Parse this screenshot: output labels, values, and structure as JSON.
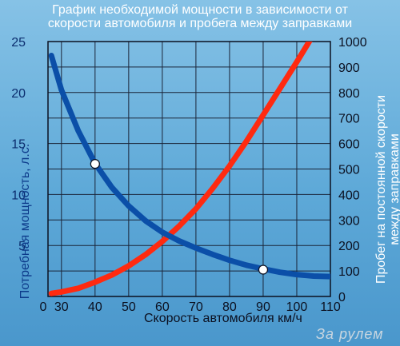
{
  "header": {
    "title_line1": "График необходимой мощности в зависимости от",
    "title_line2": "скорости автомобиля и пробега между заправками"
  },
  "axes": {
    "ylabel": "Потребная мощность, л.с.",
    "y2label_line1": "Пробег на постоянной скорости",
    "y2label_line2": "между заправками",
    "xlabel": "Скорость автомобиля км/ч"
  },
  "watermark": "За рулем",
  "chart_data": {
    "type": "line",
    "xlim": [
      26,
      110
    ],
    "ylim": [
      0,
      25
    ],
    "y2lim": [
      0,
      1000
    ],
    "x_ticks": [
      30,
      40,
      50,
      60,
      70,
      80,
      90,
      100,
      110
    ],
    "x_origin_label": "0",
    "y_ticks": [
      5,
      10,
      15,
      20,
      25
    ],
    "y2_ticks": [
      0,
      100,
      200,
      300,
      400,
      500,
      600,
      700,
      800,
      900,
      1000
    ],
    "grid": true,
    "series": [
      {
        "axis": "y",
        "color": "#ff2a10",
        "points": [
          [
            27,
            0.3
          ],
          [
            30,
            0.45
          ],
          [
            35,
            0.8
          ],
          [
            40,
            1.4
          ],
          [
            45,
            2.1
          ],
          [
            50,
            3.0
          ],
          [
            55,
            4.1
          ],
          [
            60,
            5.4
          ],
          [
            65,
            6.9
          ],
          [
            70,
            8.6
          ],
          [
            75,
            10.6
          ],
          [
            80,
            12.8
          ],
          [
            85,
            15.2
          ],
          [
            90,
            17.8
          ],
          [
            95,
            20.4
          ],
          [
            100,
            23.0
          ],
          [
            105,
            25.7
          ],
          [
            110,
            28.3
          ]
        ]
      },
      {
        "axis": "y2",
        "color": "#0b4fa8",
        "points": [
          [
            27,
            945
          ],
          [
            30,
            810
          ],
          [
            35,
            650
          ],
          [
            40,
            522
          ],
          [
            45,
            428
          ],
          [
            50,
            355
          ],
          [
            55,
            297
          ],
          [
            60,
            252
          ],
          [
            65,
            218
          ],
          [
            70,
            190
          ],
          [
            75,
            165
          ],
          [
            80,
            142
          ],
          [
            85,
            123
          ],
          [
            90,
            108
          ],
          [
            95,
            95
          ],
          [
            100,
            86
          ],
          [
            105,
            80
          ],
          [
            110,
            78
          ]
        ],
        "markers": [
          [
            40,
            520
          ],
          [
            90,
            105
          ]
        ]
      }
    ]
  }
}
